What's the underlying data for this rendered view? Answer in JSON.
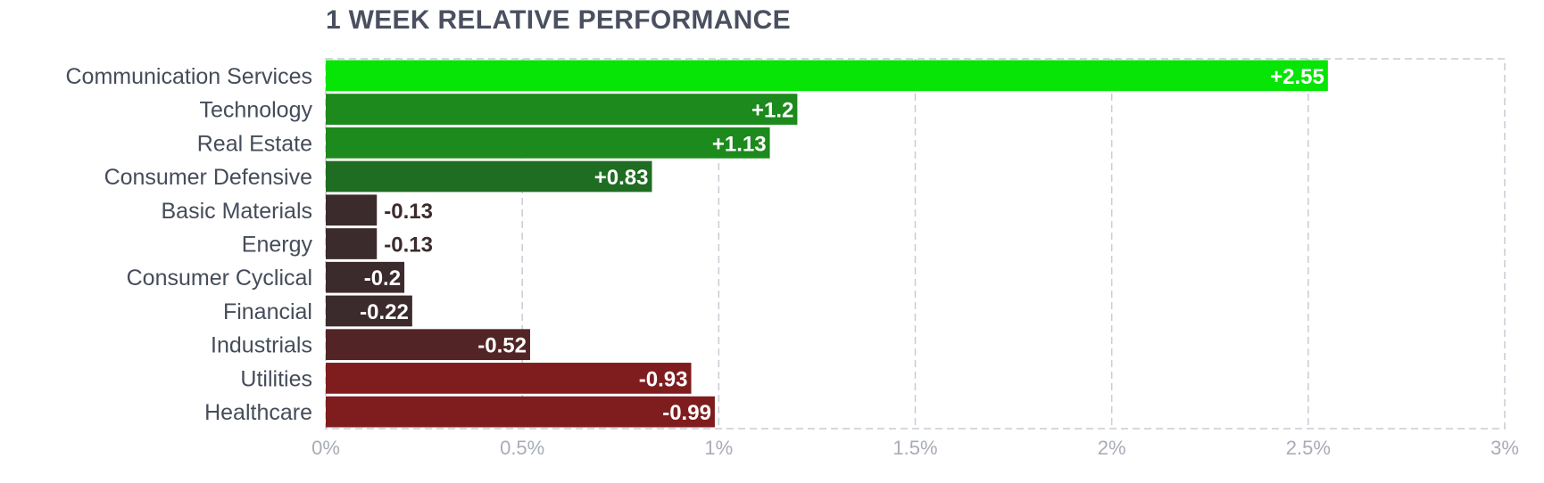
{
  "chart_data": {
    "type": "bar",
    "orientation": "horizontal",
    "title": "1 WEEK RELATIVE PERFORMANCE",
    "categories": [
      "Communication Services",
      "Technology",
      "Real Estate",
      "Consumer Defensive",
      "Basic Materials",
      "Energy",
      "Consumer Cyclical",
      "Financial",
      "Industrials",
      "Utilities",
      "Healthcare"
    ],
    "values": [
      2.55,
      1.2,
      1.13,
      0.83,
      -0.13,
      -0.13,
      -0.2,
      -0.22,
      -0.52,
      -0.93,
      -0.99
    ],
    "value_labels": [
      "+2.55",
      "+1.2",
      "+1.13",
      "+0.83",
      "-0.13",
      "-0.13",
      "-0.2",
      "-0.22",
      "-0.52",
      "-0.93",
      "-0.99"
    ],
    "bar_colors": [
      "#06e506",
      "#1c8a1c",
      "#1c8a1c",
      "#1f6d22",
      "#3c2b2d",
      "#3c2b2d",
      "#3c2b2d",
      "#3c2b2d",
      "#532426",
      "#7f1d1e",
      "#7f1d1e"
    ],
    "x_ticks": [
      "0%",
      "0.5%",
      "1%",
      "1.5%",
      "2%",
      "2.5%",
      "3%"
    ],
    "xlim": [
      0,
      3
    ],
    "bar_length": "absolute value",
    "grid": true,
    "label_colors": {
      "inside": "#ffffff",
      "outside": "#3c2b2d"
    },
    "tick_color": "#a8acb6",
    "grid_color": "#c8ccd4"
  }
}
